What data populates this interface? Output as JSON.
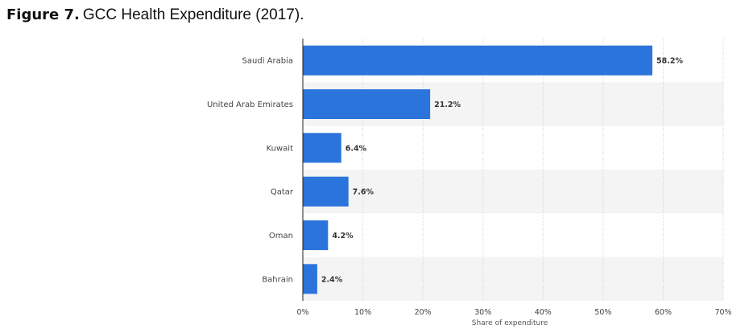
{
  "figure": {
    "label": "Figure 7.",
    "caption": "GCC Health Expenditure (2017)."
  },
  "chart_data": {
    "type": "bar",
    "orientation": "horizontal",
    "categories": [
      "Saudi Arabia",
      "United Arab Emirates",
      "Kuwait",
      "Qatar",
      "Oman",
      "Bahrain"
    ],
    "values": [
      58.2,
      21.2,
      6.4,
      7.6,
      4.2,
      2.4
    ],
    "value_labels": [
      "58.2%",
      "21.2%",
      "6.4%",
      "7.6%",
      "4.2%",
      "2.4%"
    ],
    "xlabel": "Share of expenditure",
    "ylabel": "",
    "xlim": [
      0,
      70
    ],
    "x_ticks": [
      0,
      10,
      20,
      30,
      40,
      50,
      60,
      70
    ],
    "x_tick_labels": [
      "0%",
      "10%",
      "20%",
      "30%",
      "40%",
      "50%",
      "60%",
      "70%"
    ],
    "grid": true,
    "colors": {
      "bar": "#2a74db",
      "band_alt": "#f4f4f4",
      "grid": "#cccccc",
      "axis": "#222222"
    }
  }
}
